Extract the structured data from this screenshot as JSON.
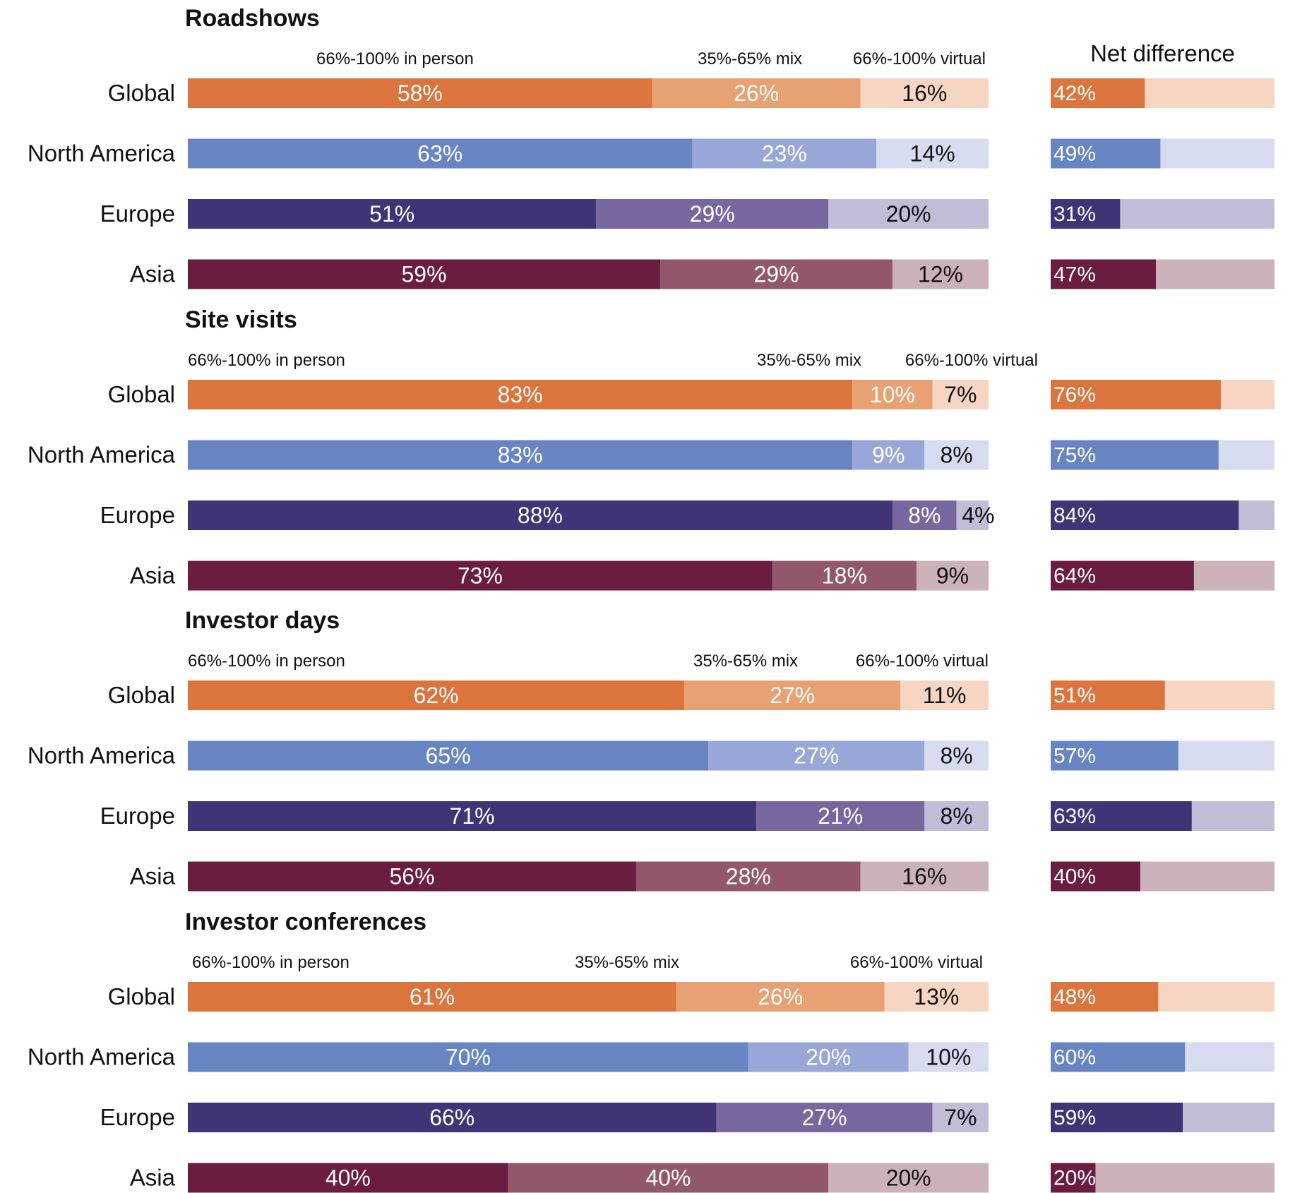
{
  "chart_data": {
    "type": "bar",
    "orientation": "horizontal",
    "stacked": true,
    "net_difference_title": "Net difference",
    "value_format": "percent",
    "segment_labels": [
      "66%-100% in person",
      "35%-65% mix",
      "66%-100% virtual"
    ],
    "region_colors": {
      "Global": [
        "#db743d",
        "#e8a173",
        "#f6d6c3"
      ],
      "North America": [
        "#6784c3",
        "#98a7d7",
        "#d6dbef"
      ],
      "Europe": [
        "#3e3476",
        "#77679e",
        "#c2bdd6"
      ],
      "Asia": [
        "#6b1c41",
        "#93576c",
        "#cbb2b9"
      ]
    },
    "panels": [
      {
        "title": "Roadshows",
        "rows": [
          {
            "region": "Global",
            "in_person": 58,
            "mix": 26,
            "virtual": 16,
            "net_difference": 42
          },
          {
            "region": "North America",
            "in_person": 63,
            "mix": 23,
            "virtual": 14,
            "net_difference": 49
          },
          {
            "region": "Europe",
            "in_person": 51,
            "mix": 29,
            "virtual": 20,
            "net_difference": 31
          },
          {
            "region": "Asia",
            "in_person": 59,
            "mix": 29,
            "virtual": 12,
            "net_difference": 47
          }
        ]
      },
      {
        "title": "Site visits",
        "rows": [
          {
            "region": "Global",
            "in_person": 83,
            "mix": 10,
            "virtual": 7,
            "net_difference": 76
          },
          {
            "region": "North America",
            "in_person": 83,
            "mix": 9,
            "virtual": 8,
            "net_difference": 75
          },
          {
            "region": "Europe",
            "in_person": 88,
            "mix": 8,
            "virtual": 4,
            "net_difference": 84
          },
          {
            "region": "Asia",
            "in_person": 73,
            "mix": 18,
            "virtual": 9,
            "net_difference": 64
          }
        ]
      },
      {
        "title": "Investor days",
        "rows": [
          {
            "region": "Global",
            "in_person": 62,
            "mix": 27,
            "virtual": 11,
            "net_difference": 51
          },
          {
            "region": "North America",
            "in_person": 65,
            "mix": 27,
            "virtual": 8,
            "net_difference": 57
          },
          {
            "region": "Europe",
            "in_person": 71,
            "mix": 21,
            "virtual": 8,
            "net_difference": 63
          },
          {
            "region": "Asia",
            "in_person": 56,
            "mix": 28,
            "virtual": 16,
            "net_difference": 40
          }
        ]
      },
      {
        "title": "Investor conferences",
        "rows": [
          {
            "region": "Global",
            "in_person": 61,
            "mix": 26,
            "virtual": 13,
            "net_difference": 48
          },
          {
            "region": "North America",
            "in_person": 70,
            "mix": 20,
            "virtual": 10,
            "net_difference": 60
          },
          {
            "region": "Europe",
            "in_person": 66,
            "mix": 27,
            "virtual": 7,
            "net_difference": 59
          },
          {
            "region": "Asia",
            "in_person": 40,
            "mix": 40,
            "virtual": 20,
            "net_difference": 20
          }
        ]
      }
    ]
  }
}
